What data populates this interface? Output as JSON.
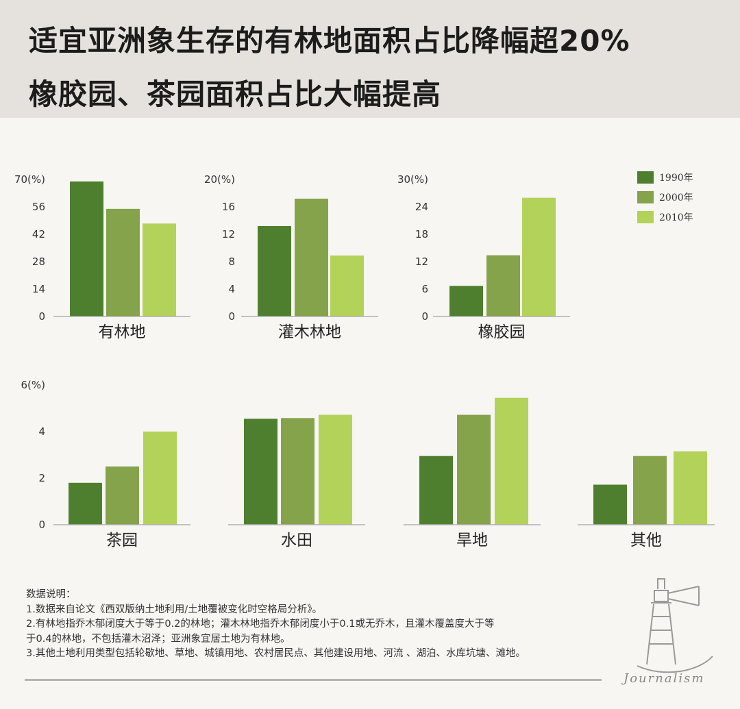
{
  "header": {
    "title_line1": "适宜亚洲象生存的有林地面积占比降幅超20%",
    "title_line2": "橡胶园、茶园面积占比大幅提高"
  },
  "colors": {
    "series": [
      "#4e7f2e",
      "#84a34b",
      "#b3d25a"
    ],
    "header_bg": "#e5e1dc",
    "page_bg": "#f7f6f3"
  },
  "chart_data": [
    {
      "type": "bar",
      "category": "有林地",
      "ytick_labels": [
        "70(%)",
        "56",
        "42",
        "28",
        "14",
        "0"
      ],
      "ylim": [
        0,
        70
      ],
      "series": [
        {
          "name": "1990年",
          "value": 69
        },
        {
          "name": "2000年",
          "value": 55
        },
        {
          "name": "2010年",
          "value": 47.5
        }
      ]
    },
    {
      "type": "bar",
      "category": "灌木林地",
      "ytick_labels": [
        "20(%)",
        "16",
        "12",
        "8",
        "4",
        "0"
      ],
      "ylim": [
        0,
        20
      ],
      "series": [
        {
          "name": "1990年",
          "value": 13.2
        },
        {
          "name": "2000年",
          "value": 17.2
        },
        {
          "name": "2010年",
          "value": 8.9
        }
      ]
    },
    {
      "type": "bar",
      "category": "橡胶园",
      "ytick_labels": [
        "30(%)",
        "24",
        "18",
        "12",
        "6",
        "0"
      ],
      "ylim": [
        0,
        30
      ],
      "series": [
        {
          "name": "1990年",
          "value": 6.7
        },
        {
          "name": "2000年",
          "value": 13.4
        },
        {
          "name": "2010年",
          "value": 26
        }
      ]
    },
    {
      "type": "bar",
      "category": "茶园",
      "ytick_labels": [
        "6(%)",
        "4",
        "2",
        "0"
      ],
      "ylim": [
        0,
        6
      ],
      "series": [
        {
          "name": "1990年",
          "value": 1.8
        },
        {
          "name": "2000年",
          "value": 2.5
        },
        {
          "name": "2010年",
          "value": 4.0
        }
      ]
    },
    {
      "type": "bar",
      "category": "水田",
      "ylim": [
        0,
        6
      ],
      "series": [
        {
          "name": "1990年",
          "value": 4.55
        },
        {
          "name": "2000年",
          "value": 4.58
        },
        {
          "name": "2010年",
          "value": 4.72
        }
      ]
    },
    {
      "type": "bar",
      "category": "旱地",
      "ylim": [
        0,
        6
      ],
      "series": [
        {
          "name": "1990年",
          "value": 2.95
        },
        {
          "name": "2000年",
          "value": 4.72
        },
        {
          "name": "2010年",
          "value": 5.45
        }
      ]
    },
    {
      "type": "bar",
      "category": "其他",
      "ylim": [
        0,
        6
      ],
      "series": [
        {
          "name": "1990年",
          "value": 1.72
        },
        {
          "name": "2000年",
          "value": 2.95
        },
        {
          "name": "2010年",
          "value": 3.15
        }
      ]
    }
  ],
  "legend": {
    "placement": "top-right",
    "items": [
      "1990年",
      "2000年",
      "2010年"
    ]
  },
  "notes": {
    "heading": "数据说明：",
    "lines": [
      "1.数据来自论文《西双版纳土地利用/土地覆被变化时空格局分析》。",
      "2.有林地指乔木郁闭度大于等于0.2的林地；灌木林地指乔木郁闭度小于0.1或无乔木，且灌木覆盖度大于等",
      "于0.4的林地，不包括灌木沼泽；亚洲象宜居土地为有林地。",
      "3.其他土地利用类型包括轮歇地、草地、城镇用地、农村居民点、其他建设用地、河流 、湖泊、水库坑塘、滩地。"
    ]
  },
  "logo": {
    "text": "Journalism",
    "icon": "lighthouse-icon"
  }
}
